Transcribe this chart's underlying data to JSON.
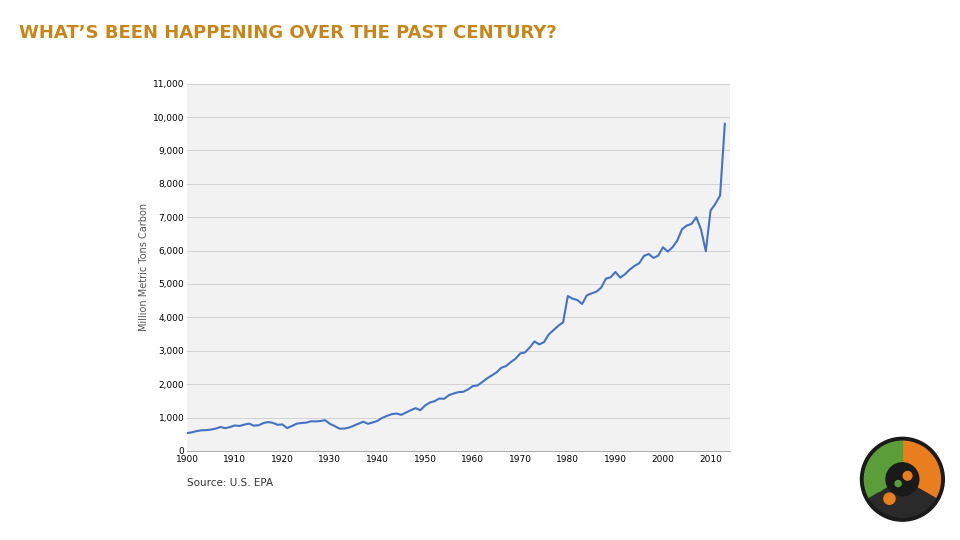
{
  "title": "WHAT’S BEEN HAPPENING OVER THE PAST CENTURY?",
  "title_color": "#C8861A",
  "title_fontsize": 13,
  "source_text": "Source: U.S. EPA",
  "ylabel": "Million Metric Tons Carbon",
  "xlabel": "",
  "background_color": "#ffffff",
  "footer_color": "#4a6378",
  "line_color": "#4472C4",
  "line_width": 1.5,
  "grid_color": "#cccccc",
  "ylim": [
    0,
    11000
  ],
  "xlim": [
    1900,
    2014
  ],
  "yticks": [
    0,
    1000,
    2000,
    3000,
    4000,
    5000,
    6000,
    7000,
    8000,
    9000,
    10000,
    11000
  ],
  "xticks": [
    1900,
    1910,
    1920,
    1930,
    1940,
    1950,
    1960,
    1970,
    1980,
    1990,
    2000,
    2010
  ],
  "data_x": [
    1900,
    1901,
    1902,
    1903,
    1904,
    1905,
    1906,
    1907,
    1908,
    1909,
    1910,
    1911,
    1912,
    1913,
    1914,
    1915,
    1916,
    1917,
    1918,
    1919,
    1920,
    1921,
    1922,
    1923,
    1924,
    1925,
    1926,
    1927,
    1928,
    1929,
    1930,
    1931,
    1932,
    1933,
    1934,
    1935,
    1936,
    1937,
    1938,
    1939,
    1940,
    1941,
    1942,
    1943,
    1944,
    1945,
    1946,
    1947,
    1948,
    1949,
    1950,
    1951,
    1952,
    1953,
    1954,
    1955,
    1956,
    1957,
    1958,
    1959,
    1960,
    1961,
    1962,
    1963,
    1964,
    1965,
    1966,
    1967,
    1968,
    1969,
    1970,
    1971,
    1972,
    1973,
    1974,
    1975,
    1976,
    1977,
    1978,
    1979,
    1980,
    1981,
    1982,
    1983,
    1984,
    1985,
    1986,
    1987,
    1988,
    1989,
    1990,
    1991,
    1992,
    1993,
    1994,
    1995,
    1996,
    1997,
    1998,
    1999,
    2000,
    2001,
    2002,
    2003,
    2004,
    2005,
    2006,
    2007,
    2008,
    2009,
    2010,
    2011,
    2012,
    2013
  ],
  "data_y": [
    534,
    556,
    594,
    617,
    622,
    639,
    668,
    717,
    680,
    714,
    762,
    747,
    787,
    818,
    756,
    768,
    832,
    865,
    840,
    782,
    793,
    682,
    746,
    815,
    836,
    846,
    887,
    883,
    896,
    920,
    810,
    744,
    667,
    668,
    698,
    754,
    815,
    875,
    812,
    852,
    900,
    990,
    1050,
    1100,
    1120,
    1080,
    1150,
    1220,
    1280,
    1220,
    1360,
    1450,
    1490,
    1570,
    1560,
    1670,
    1720,
    1760,
    1770,
    1840,
    1940,
    1960,
    2060,
    2170,
    2260,
    2350,
    2490,
    2540,
    2660,
    2760,
    2920,
    2950,
    3100,
    3280,
    3190,
    3260,
    3490,
    3620,
    3750,
    3850,
    4640,
    4560,
    4520,
    4400,
    4660,
    4720,
    4770,
    4890,
    5160,
    5200,
    5360,
    5190,
    5290,
    5430,
    5540,
    5620,
    5840,
    5900,
    5780,
    5850,
    6100,
    5970,
    6100,
    6300,
    6640,
    6750,
    6800,
    7000,
    6630,
    5980,
    7200,
    7400,
    7650,
    9800
  ],
  "chart_bg": "#f2f2f2",
  "tick_fontsize": 6.5,
  "ylabel_fontsize": 7
}
